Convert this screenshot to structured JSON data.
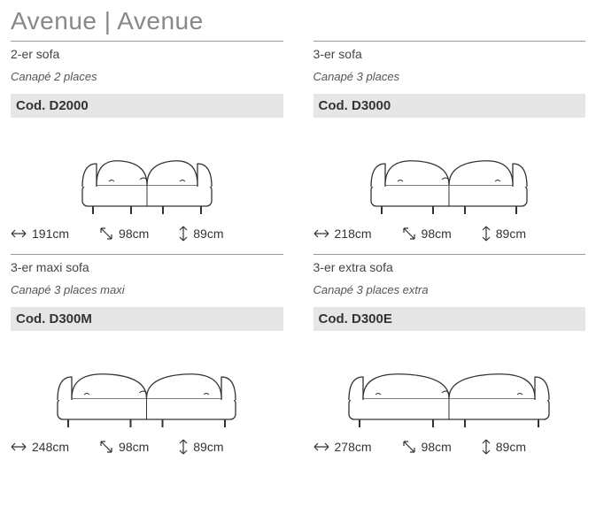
{
  "title": "Avenue | Avenue",
  "colors": {
    "title": "#888888",
    "text": "#444444",
    "italic": "#555555",
    "codeBg": "#e6e6e6",
    "codeText": "#333333",
    "rule": "#999999",
    "line": "#333333"
  },
  "fontSizes": {
    "title": 28,
    "nameEn": 14,
    "nameFr": 13,
    "code": 15,
    "dim": 14
  },
  "products": [
    {
      "nameEn": "2-er sofa",
      "nameFr": "Canapé 2 places",
      "code": "Cod. D2000",
      "sofaWidth": 150,
      "width": "191cm",
      "depth": "98cm",
      "height": "89cm"
    },
    {
      "nameEn": "3-er sofa",
      "nameFr": "Canapé 3 places",
      "code": "Cod. D3000",
      "sofaWidth": 180,
      "width": "218cm",
      "depth": "98cm",
      "height": "89cm"
    },
    {
      "nameEn": "3-er maxi sofa",
      "nameFr": "Canapé 3 places maxi",
      "code": "Cod. D300M",
      "sofaWidth": 205,
      "width": "248cm",
      "depth": "98cm",
      "height": "89cm"
    },
    {
      "nameEn": "3-er extra sofa",
      "nameFr": "Canapé 3 places extra",
      "code": "Cod. D300E",
      "sofaWidth": 230,
      "width": "278cm",
      "depth": "98cm",
      "height": "89cm"
    }
  ]
}
